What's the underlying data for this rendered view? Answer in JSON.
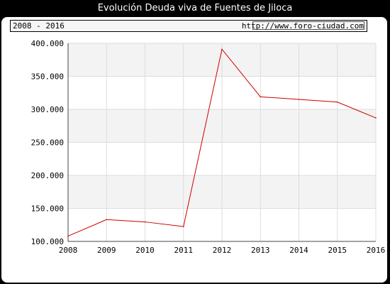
{
  "header": {
    "title": "Evolución Deuda viva de Fuentes de Jiloca",
    "range": "2008 - 2016",
    "url": "http://www.foro-ciudad.com"
  },
  "colors": {
    "line": "#cc0000",
    "band": "#f3f3f3",
    "grid": "#dddddd"
  },
  "chart_data": {
    "type": "line",
    "title": "Evolución Deuda viva de Fuentes de Jiloca",
    "x": [
      "2008",
      "2009",
      "2010",
      "2011",
      "2012",
      "2013",
      "2014",
      "2015",
      "2016"
    ],
    "series": [
      {
        "values": [
          108000,
          133000,
          129500,
          122500,
          391000,
          319000,
          315000,
          311000,
          287000
        ]
      }
    ],
    "y_ticks": [
      "100.000",
      "150.000",
      "200.000",
      "250.000",
      "300.000",
      "350.000",
      "400.000"
    ],
    "ylim": [
      100000,
      400000
    ],
    "grid": true
  }
}
